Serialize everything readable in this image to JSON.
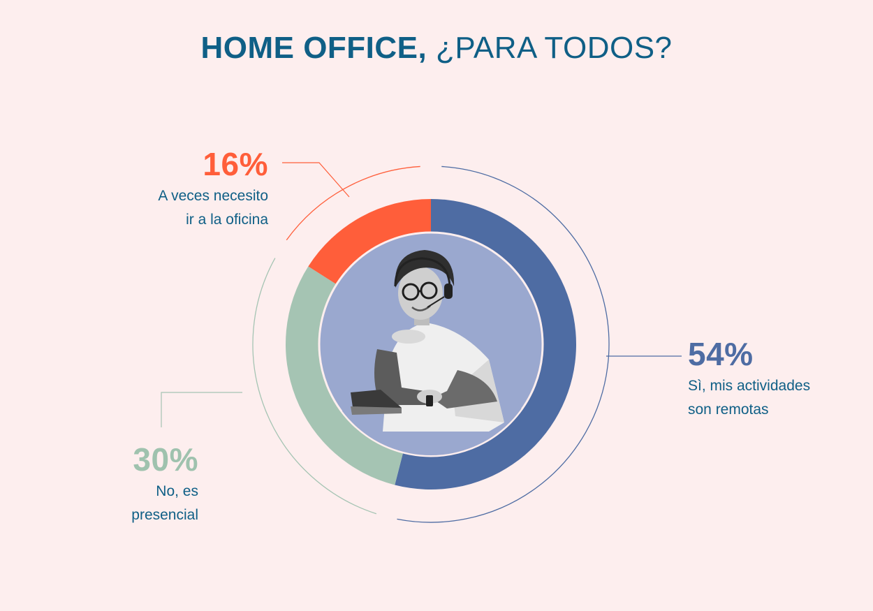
{
  "header": {
    "title_bold": "HOME OFFICE,",
    "title_light": " ¿PARA TODOS?"
  },
  "chart_data": {
    "type": "pie",
    "variant": "donut",
    "title": "HOME OFFICE, ¿PARA TODOS?",
    "slices": [
      {
        "label_line1": "Sì, mis actividades",
        "label_line2": "son remotas",
        "percent_text": "54%",
        "value": 54,
        "color": "#4e6ca3",
        "pct_color": "#4e6ca3"
      },
      {
        "label_line1": "No, es",
        "label_line2": "presencial",
        "percent_text": "30%",
        "value": 30,
        "color": "#a5c4b3",
        "pct_color": "#9fc2ae"
      },
      {
        "label_line1": "A veces necesito",
        "label_line2": "ir a la oficina",
        "percent_text": "16%",
        "value": 16,
        "color": "#ff5e3a",
        "pct_color": "#ff5e3a"
      }
    ],
    "center_image": "woman-with-headset-photo",
    "center_color": "#9aa8cf",
    "start": "top",
    "direction": "clockwise"
  }
}
